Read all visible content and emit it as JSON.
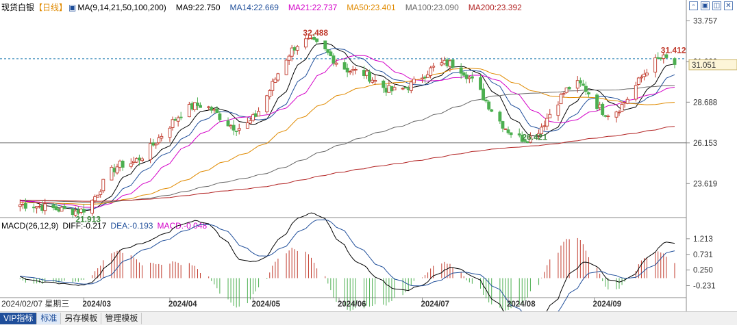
{
  "header": {
    "instrument": "现货白银",
    "period": "【日线】",
    "ma_title": "MA(9,14,21,50,100,200)",
    "ma_values": [
      {
        "label": "MA9:22.750",
        "color": "#000000"
      },
      {
        "label": "MA14:22.669",
        "color": "#1f4e9a"
      },
      {
        "label": "MA21:22.737",
        "color": "#d400c8"
      },
      {
        "label": "MA50:23.401",
        "color": "#e08a00"
      },
      {
        "label": "MA100:23.090",
        "color": "#666666"
      },
      {
        "label": "MA200:23.392",
        "color": "#b22222"
      }
    ]
  },
  "macd_header": {
    "title": "MACD(26,12,9)",
    "diff": "DIFF:-0.217",
    "dea": "DEA:-0.193",
    "macd": "MACD:-0.048"
  },
  "price_axis": [
    "33.757",
    "31.222",
    "28.688",
    "26.153",
    "23.619"
  ],
  "current_price": "31.051",
  "macd_axis": [
    "1.213",
    "0.731",
    "0.250",
    "-0.231"
  ],
  "date_axis": [
    "2024/03",
    "2024/04",
    "2024/05",
    "2024/06",
    "2024/07",
    "2024/08",
    "2024/09"
  ],
  "cursor_date": "2024/02/07 星期三",
  "annotations": {
    "high": "32.488",
    "low": "21.913",
    "low2": "26.421",
    "recent_high": "31.412"
  },
  "footer_tabs": [
    "VIP指标",
    "标准",
    "另存模板",
    "管理模板"
  ],
  "colors": {
    "up": "#c0392b",
    "down": "#4caf50",
    "accent": "#1f4e9a"
  },
  "chart_data": {
    "type": "candlestick",
    "title": "现货白银【日线】",
    "ylim": [
      21.5,
      34.2
    ],
    "key_points": [
      {
        "date": "2024-02-07",
        "value": 22.3
      },
      {
        "date": "2024-02-28",
        "value": 21.913
      },
      {
        "date": "2024-03-15",
        "value": 24.8
      },
      {
        "date": "2024-04-12",
        "value": 28.5
      },
      {
        "date": "2024-04-26",
        "value": 27.1
      },
      {
        "date": "2024-05-20",
        "value": 32.488
      },
      {
        "date": "2024-06-07",
        "value": 30.6
      },
      {
        "date": "2024-06-21",
        "value": 29.4
      },
      {
        "date": "2024-07-10",
        "value": 31.1
      },
      {
        "date": "2024-08-07",
        "value": 26.421
      },
      {
        "date": "2024-08-26",
        "value": 29.8
      },
      {
        "date": "2024-09-06",
        "value": 28.0
      },
      {
        "date": "2024-09-26",
        "value": 31.412
      },
      {
        "date": "2024-09-30",
        "value": 31.051
      }
    ],
    "moving_averages": [
      "MA9",
      "MA14",
      "MA21",
      "MA50",
      "MA100",
      "MA200"
    ],
    "macd": {
      "params": "26,12,9",
      "diff": -0.217,
      "dea": -0.193,
      "macd": -0.048,
      "ylim": [
        -0.6,
        1.4
      ]
    }
  }
}
